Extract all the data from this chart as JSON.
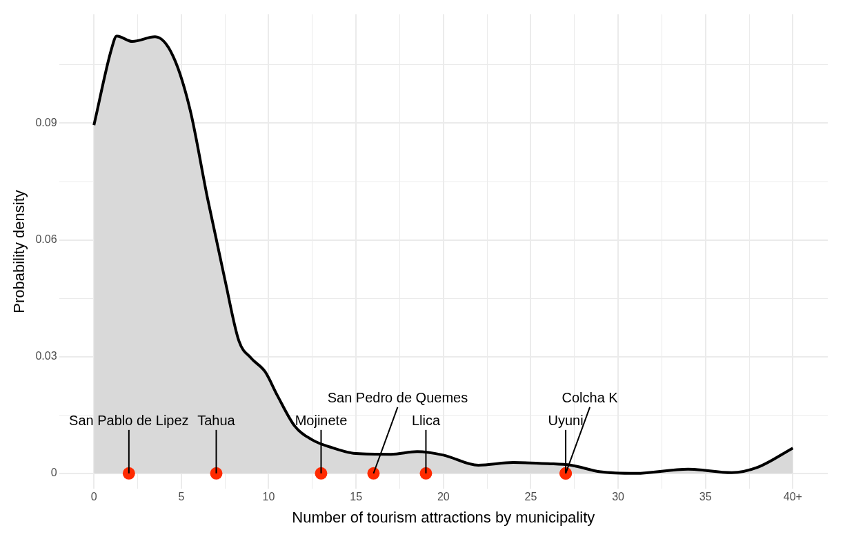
{
  "chart_data": {
    "type": "area",
    "xlabel": "Number of tourism attractions by municipality",
    "ylabel": "Probability density",
    "xlim": [
      -2,
      42
    ],
    "ylim": [
      -0.004,
      0.118
    ],
    "xticks": [
      0,
      {
        "value": 2.5,
        "label": null
      },
      5,
      {
        "value": 7.5,
        "label": null
      },
      10,
      {
        "value": 12.5,
        "label": null
      },
      15,
      {
        "value": 17.5,
        "label": null
      },
      20,
      {
        "value": 22.5,
        "label": null
      },
      25,
      {
        "value": 27.5,
        "label": null
      },
      30,
      {
        "value": 32.5,
        "label": null
      },
      35,
      {
        "value": 37.5,
        "label": null
      },
      {
        "value": 40,
        "label": "40+"
      }
    ],
    "yticks": [
      0,
      {
        "value": 0.015,
        "label": null
      },
      0.03,
      {
        "value": 0.045,
        "label": null
      },
      0.06,
      {
        "value": 0.075,
        "label": null
      },
      0.09,
      {
        "value": 0.105,
        "label": null
      }
    ],
    "grid": true,
    "legend": false,
    "series": [
      {
        "type": "area",
        "color": "#000000",
        "marker": "none",
        "x": [
          0,
          1,
          1.3,
          2.2,
          3.5,
          4.5,
          5.5,
          6.5,
          7.5,
          8.3,
          9,
          9.8,
          10.5,
          11.5,
          12.5,
          13.5,
          15,
          17,
          18.5,
          20,
          22,
          24,
          26,
          27.3,
          29,
          31,
          34,
          36.5,
          38,
          40
        ],
        "values": [
          0.0895,
          0.109,
          0.1124,
          0.111,
          0.1122,
          0.1075,
          0.0935,
          0.0707,
          0.0497,
          0.034,
          0.0296,
          0.0261,
          0.02,
          0.0121,
          0.0086,
          0.0068,
          0.0051,
          0.0049,
          0.0056,
          0.0047,
          0.0021,
          0.0028,
          0.0025,
          0.0021,
          0.0004,
          0,
          0.0011,
          0.0002,
          0.0016,
          0.0065
        ]
      },
      {
        "type": "scatter",
        "color": "#ff2a00",
        "marker": "circle",
        "x": [
          2,
          7,
          13,
          16,
          19,
          27,
          27
        ],
        "values": [
          0,
          0,
          0,
          0,
          0,
          0,
          0
        ]
      }
    ],
    "annotations": [
      {
        "text": "San Pablo de Lipez",
        "x": 2,
        "y": 0
      },
      {
        "text": "Tahua",
        "x": 7,
        "y": 0
      },
      {
        "text": "Mojinete",
        "x": 13,
        "y": 0
      },
      {
        "text": "San Pedro de Quemes",
        "x": 16,
        "y": 0
      },
      {
        "text": "Llica",
        "x": 19,
        "y": 0
      },
      {
        "text": "Uyuni",
        "x": 27,
        "y": 0
      },
      {
        "text": "Colcha K",
        "x": 27,
        "y": 0
      }
    ]
  }
}
